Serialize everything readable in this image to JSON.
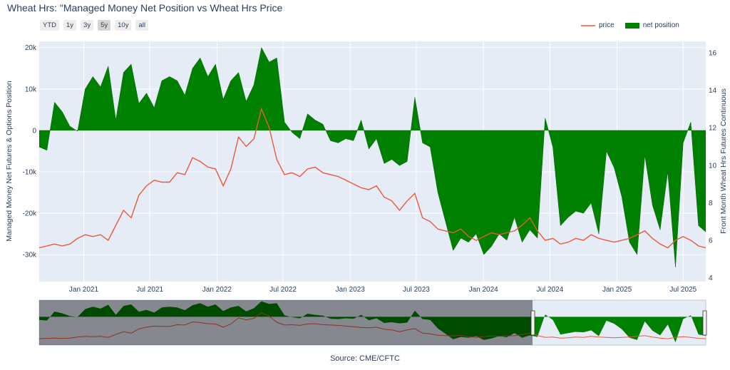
{
  "title": "Wheat Hrs: \"Managed Money Net Position vs Wheat Hrs Price",
  "range_buttons": [
    "YTD",
    "1y",
    "3y",
    "5y",
    "10y",
    "all"
  ],
  "active_range": "5y",
  "legend": {
    "price_label": "price",
    "net_label": "net position"
  },
  "source": "Source: CME/CFTC",
  "colors": {
    "price": "#e8593b",
    "net": "#008000",
    "plot_bg": "#e5ecf6",
    "grid": "#ffffff"
  },
  "chart_data": {
    "type": "area",
    "title": "Wheat Hrs: \"Managed Money Net Position vs Wheat Hrs Price",
    "ylabel": "Managed Money Net Futures & Options Position",
    "y2label": "Front Month Wheat Hrs Futures Continuous",
    "x_ticks": [
      "Jan 2021",
      "Jul 2021",
      "Jan 2022",
      "Jul 2022",
      "Jan 2023",
      "Jul 2023",
      "Jan 2024",
      "Jul 2024",
      "Jan 2025",
      "Jul 2025"
    ],
    "y_ticks": [
      "20k",
      "10k",
      "0",
      "-10k",
      "-20k",
      "-30k"
    ],
    "y2_ticks": [
      "16",
      "14",
      "12",
      "10",
      "8",
      "6",
      "4"
    ],
    "ylim": [
      -36500,
      21500
    ],
    "y2lim": [
      3.8,
      16.6
    ],
    "xlim": [
      "2020-09-01",
      "2025-09-01"
    ],
    "grid": true,
    "legend_position": "top-right",
    "series": [
      {
        "name": "net position",
        "kind": "area",
        "axis": "left",
        "x": [
          "2020-09-01",
          "2020-09-22",
          "2020-10-13",
          "2020-11-03",
          "2020-11-24",
          "2020-12-15",
          "2021-01-05",
          "2021-01-26",
          "2021-02-16",
          "2021-03-09",
          "2021-03-30",
          "2021-04-20",
          "2021-05-11",
          "2021-06-01",
          "2021-06-22",
          "2021-07-13",
          "2021-08-03",
          "2021-08-24",
          "2021-09-14",
          "2021-10-05",
          "2021-10-26",
          "2021-11-16",
          "2021-12-07",
          "2021-12-28",
          "2022-01-18",
          "2022-02-08",
          "2022-03-01",
          "2022-03-22",
          "2022-04-12",
          "2022-05-03",
          "2022-05-24",
          "2022-06-14",
          "2022-07-05",
          "2022-07-26",
          "2022-08-16",
          "2022-09-06",
          "2022-09-27",
          "2022-10-18",
          "2022-11-08",
          "2022-11-29",
          "2022-12-20",
          "2023-01-10",
          "2023-01-31",
          "2023-02-21",
          "2023-03-14",
          "2023-04-04",
          "2023-04-25",
          "2023-05-16",
          "2023-06-06",
          "2023-06-27",
          "2023-07-18",
          "2023-08-08",
          "2023-08-29",
          "2023-09-19",
          "2023-10-10",
          "2023-10-31",
          "2023-11-21",
          "2023-12-12",
          "2024-01-02",
          "2024-01-23",
          "2024-02-13",
          "2024-03-05",
          "2024-03-26",
          "2024-04-16",
          "2024-05-07",
          "2024-05-28",
          "2024-06-18",
          "2024-07-09",
          "2024-07-30",
          "2024-08-20",
          "2024-09-10",
          "2024-10-01",
          "2024-10-22",
          "2024-11-12",
          "2024-12-03",
          "2024-12-24",
          "2025-01-14",
          "2025-02-04",
          "2025-02-25",
          "2025-03-18",
          "2025-04-08",
          "2025-04-29",
          "2025-05-20",
          "2025-06-10",
          "2025-07-01",
          "2025-07-22",
          "2025-08-12",
          "2025-09-01"
        ],
        "values": [
          -4000,
          -4800,
          6800,
          4500,
          1000,
          -200,
          10000,
          13000,
          10500,
          15500,
          2500,
          14000,
          16000,
          6500,
          9000,
          5500,
          12000,
          13000,
          12000,
          8500,
          15000,
          17500,
          13000,
          16000,
          7500,
          12000,
          14000,
          7000,
          11000,
          20000,
          16500,
          17500,
          2000,
          -500,
          -2000,
          4000,
          2500,
          1500,
          -2500,
          -3000,
          -2000,
          -2500,
          2500,
          -4500,
          -2000,
          -8000,
          -7000,
          -8500,
          -7500,
          8000,
          -3000,
          -4000,
          -15000,
          -22000,
          -29000,
          -26000,
          -27000,
          -25000,
          -30000,
          -28000,
          -25000,
          -26500,
          -21000,
          -27000,
          -24000,
          -26000,
          3000,
          -4000,
          -23000,
          -21000,
          -19500,
          -20000,
          -17500,
          -25000,
          -5000,
          -9000,
          -16000,
          -27000,
          -30000,
          -6000,
          -18000,
          -24000,
          -10000,
          -33000,
          -3000,
          2000,
          -23000,
          -24500
        ]
      },
      {
        "name": "price",
        "kind": "line",
        "axis": "right",
        "x": [
          "2020-09-01",
          "2020-09-22",
          "2020-10-13",
          "2020-11-03",
          "2020-11-24",
          "2020-12-15",
          "2021-01-05",
          "2021-01-26",
          "2021-02-16",
          "2021-03-09",
          "2021-03-30",
          "2021-04-20",
          "2021-05-11",
          "2021-06-01",
          "2021-06-22",
          "2021-07-13",
          "2021-08-03",
          "2021-08-24",
          "2021-09-14",
          "2021-10-05",
          "2021-10-26",
          "2021-11-16",
          "2021-12-07",
          "2021-12-28",
          "2022-01-18",
          "2022-02-08",
          "2022-03-01",
          "2022-03-22",
          "2022-04-12",
          "2022-05-03",
          "2022-05-24",
          "2022-06-14",
          "2022-07-05",
          "2022-07-26",
          "2022-08-16",
          "2022-09-06",
          "2022-09-27",
          "2022-10-18",
          "2022-11-08",
          "2022-11-29",
          "2022-12-20",
          "2023-01-10",
          "2023-01-31",
          "2023-02-21",
          "2023-03-14",
          "2023-04-04",
          "2023-04-25",
          "2023-05-16",
          "2023-06-06",
          "2023-06-27",
          "2023-07-18",
          "2023-08-08",
          "2023-08-29",
          "2023-09-19",
          "2023-10-10",
          "2023-10-31",
          "2023-11-21",
          "2023-12-12",
          "2024-01-02",
          "2024-01-23",
          "2024-02-13",
          "2024-03-05",
          "2024-03-26",
          "2024-04-16",
          "2024-05-07",
          "2024-05-28",
          "2024-06-18",
          "2024-07-09",
          "2024-07-30",
          "2024-08-20",
          "2024-09-10",
          "2024-10-01",
          "2024-10-22",
          "2024-11-12",
          "2024-12-03",
          "2024-12-24",
          "2025-01-14",
          "2025-02-04",
          "2025-02-25",
          "2025-03-18",
          "2025-04-08",
          "2025-04-29",
          "2025-05-20",
          "2025-06-10",
          "2025-07-01",
          "2025-07-22",
          "2025-08-12",
          "2025-09-01"
        ],
        "values": [
          5.6,
          5.7,
          5.8,
          5.7,
          5.8,
          6.1,
          6.3,
          6.2,
          6.3,
          6.0,
          6.8,
          7.6,
          7.2,
          8.4,
          8.9,
          9.2,
          9.1,
          9.1,
          9.6,
          9.5,
          10.4,
          10.2,
          9.9,
          9.8,
          8.9,
          9.8,
          11.5,
          11.0,
          11.4,
          13.0,
          12.0,
          10.3,
          9.5,
          9.6,
          9.4,
          9.8,
          9.9,
          9.6,
          9.5,
          9.4,
          9.2,
          9.0,
          8.8,
          8.7,
          8.9,
          8.3,
          8.1,
          7.6,
          8.1,
          8.5,
          7.2,
          7.0,
          6.6,
          6.5,
          6.4,
          6.6,
          6.2,
          6.0,
          6.2,
          6.4,
          6.3,
          6.4,
          6.5,
          6.8,
          7.2,
          6.5,
          6.0,
          6.1,
          5.8,
          5.9,
          6.1,
          6.0,
          6.3,
          6.1,
          6.0,
          5.9,
          6.0,
          6.1,
          6.3,
          6.5,
          6.1,
          5.8,
          5.6,
          6.0,
          6.2,
          6.0,
          5.7,
          5.6
        ]
      }
    ]
  }
}
